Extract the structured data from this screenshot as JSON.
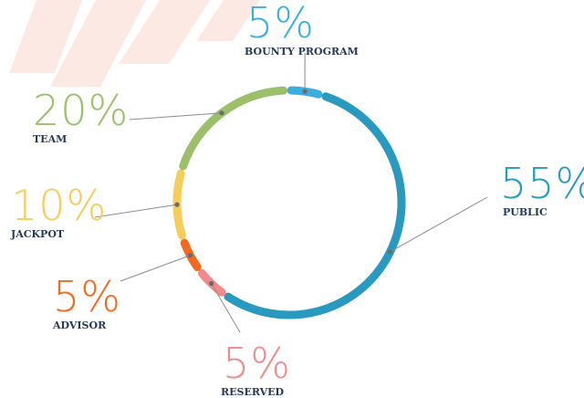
{
  "chart_data": {
    "type": "pie",
    "style": "donut",
    "slices": [
      {
        "label": "BOUNTY PROGRAM",
        "display": "5%",
        "value": 5,
        "color": "#3aaee0"
      },
      {
        "label": "PUBLIC",
        "display": "55%",
        "value": 55,
        "color": "#2999c0"
      },
      {
        "label": "RESERVED",
        "display": "5%",
        "value": 5,
        "color": "#f28a8a"
      },
      {
        "label": "ADVISOR",
        "display": "5%",
        "value": 5,
        "color": "#f26a21"
      },
      {
        "label": "JACKPOT",
        "display": "10%",
        "value": 10,
        "color": "#f5cd5b"
      },
      {
        "label": "TEAM",
        "display": "20%",
        "value": 20,
        "color": "#9bbf6a"
      }
    ]
  }
}
